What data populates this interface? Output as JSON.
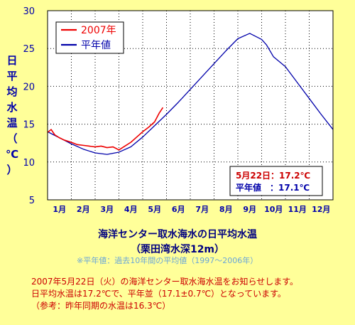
{
  "chart_data": {
    "type": "line",
    "ylabel": "日平均水温（℃）",
    "ylim": [
      5,
      30
    ],
    "yticks": [
      5,
      10,
      15,
      20,
      25,
      30
    ],
    "xlim": [
      0,
      12
    ],
    "months": [
      "1月",
      "2月",
      "3月",
      "4月",
      "5月",
      "6月",
      "7月",
      "8月",
      "9月",
      "10月",
      "11月",
      "12月"
    ],
    "grid": true,
    "legend_position": "top-left",
    "series": [
      {
        "name": "平年値",
        "color": "#0000aa",
        "x": [
          0,
          0.5,
          1,
          1.5,
          2,
          2.5,
          3,
          3.5,
          4,
          4.5,
          5,
          5.5,
          6,
          6.5,
          7,
          7.5,
          8,
          8.5,
          9,
          9.2,
          9.5,
          10,
          10.5,
          11,
          11.5,
          12
        ],
        "y": [
          14.0,
          13.2,
          12.4,
          11.7,
          11.2,
          11.0,
          11.3,
          12.0,
          13.3,
          14.8,
          16.3,
          17.9,
          19.6,
          21.3,
          23.0,
          24.7,
          26.3,
          27.0,
          26.2,
          25.5,
          23.9,
          22.6,
          20.5,
          18.4,
          16.3,
          14.3
        ]
      },
      {
        "name": "2007年",
        "color": "#ee0000",
        "x": [
          0,
          0.15,
          0.3,
          0.5,
          0.7,
          1,
          1.25,
          1.5,
          1.75,
          2,
          2.25,
          2.5,
          2.75,
          3,
          3.25,
          3.5,
          3.75,
          4,
          4.25,
          4.5,
          4.7,
          4.85
        ],
        "y": [
          13.9,
          14.3,
          13.6,
          13.2,
          12.9,
          12.6,
          12.3,
          12.2,
          12.1,
          12.0,
          12.1,
          11.9,
          12.0,
          11.6,
          12.1,
          12.6,
          13.3,
          14.0,
          14.6,
          15.3,
          16.5,
          17.2
        ]
      }
    ]
  },
  "infobox": {
    "line1": "5月22日：17.2℃",
    "line2": "平年値　：17.1℃"
  },
  "caption": {
    "title": "海洋センター取水海水の日平均水温",
    "subtitle": "（栗田湾水深12m）",
    "note": "※平年値：過去10年間の平均値（1997～2006年）"
  },
  "info": {
    "line1": "2007年5月22日（火）の海洋センター取水海水温をお知らせします。",
    "line2": "日平均水温は17.2℃で、平年並（17.1±0.7℃）となっています。",
    "line3": "（参考：昨年同期の水温は16.3℃）"
  }
}
